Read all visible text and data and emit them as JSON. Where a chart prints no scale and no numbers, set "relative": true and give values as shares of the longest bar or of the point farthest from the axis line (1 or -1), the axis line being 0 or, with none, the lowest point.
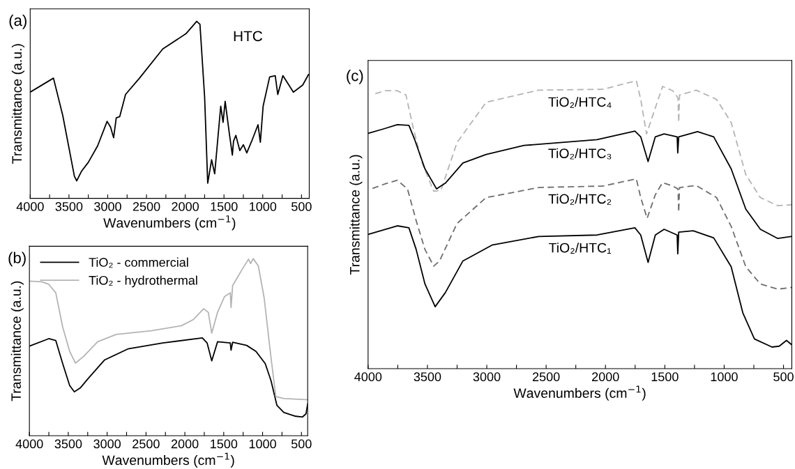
{
  "chart_data": [
    {
      "type": "line",
      "title": "(a)",
      "xlabel": "Wavenumbers (cm$^{−1}$)",
      "ylabel": "Transmittance (a.u.)",
      "relative": true,
      "tick_labels": "x",
      "xlim": [
        4000,
        400
      ],
      "xticks": [
        4000,
        {
          "value": 3750,
          "label": null
        },
        3500,
        {
          "value": 3250,
          "label": null
        },
        3000,
        {
          "value": 2750,
          "label": null
        },
        2500,
        {
          "value": 2250,
          "label": null
        },
        2000,
        {
          "value": 1750,
          "label": null
        },
        1500,
        {
          "value": 1250,
          "label": null
        },
        1000,
        {
          "value": 750,
          "label": null
        },
        500
      ],
      "annotations": [
        "HTC"
      ],
      "series": [
        {
          "color": "#000000",
          "x": [
            4000,
            3700,
            3580,
            3430,
            3400,
            3340,
            3250,
            3130,
            3008,
            2963,
            2924,
            2890,
            2845,
            2770,
            2590,
            2290,
            1990,
            1852,
            1810,
            1750,
            1710,
            1660,
            1620,
            1542,
            1512,
            1485,
            1430,
            1392,
            1377,
            1347,
            1296,
            1250,
            1206,
            1131,
            1061,
            1031,
            995,
            911,
            839,
            806,
            740,
            605,
            484,
            410
          ],
          "values": [
            0.6,
            0.679,
            0.468,
            0.125,
            0.099,
            0.152,
            0.204,
            0.297,
            0.435,
            0.402,
            0.343,
            0.455,
            0.462,
            0.587,
            0.679,
            0.844,
            0.93,
            1.0,
            0.983,
            0.574,
            0.086,
            0.218,
            0.139,
            0.521,
            0.429,
            0.548,
            0.363,
            0.244,
            0.323,
            0.356,
            0.27,
            0.303,
            0.257,
            0.336,
            0.416,
            0.317,
            0.521,
            0.686,
            0.693,
            0.587,
            0.693,
            0.6,
            0.64,
            0.699
          ]
        }
      ]
    },
    {
      "type": "line",
      "title": "(b)",
      "xlabel": "Wavenumbers (cm$^{−1}$)",
      "ylabel": "Transmittance (a.u.)",
      "relative": true,
      "tick_labels": "x",
      "xlim": [
        4000,
        420
      ],
      "legend": "top left",
      "xticks": [
        4000,
        {
          "value": 3750,
          "label": null
        },
        3500,
        {
          "value": 3250,
          "label": null
        },
        3000,
        {
          "value": 2750,
          "label": null
        },
        2500,
        {
          "value": 2250,
          "label": null
        },
        2000,
        {
          "value": 1750,
          "label": null
        },
        1500,
        {
          "value": 1250,
          "label": null
        },
        1000,
        {
          "value": 750,
          "label": null
        },
        500
      ],
      "series": [
        {
          "name": "TiO₂ - commercial",
          "color": "#000000",
          "x": [
            4000,
            3751,
            3661,
            3572,
            3482,
            3422,
            3347,
            3242,
            3032,
            2733,
            2284,
            1775,
            1714,
            1654,
            1579,
            1415,
            1406,
            1385,
            1205,
            1085,
            966,
            891,
            816,
            726,
            576,
            486,
            441,
            420
          ],
          "values": [
            0.506,
            0.548,
            0.538,
            0.407,
            0.283,
            0.248,
            0.269,
            0.324,
            0.428,
            0.49,
            0.524,
            0.552,
            0.524,
            0.423,
            0.531,
            0.524,
            0.483,
            0.528,
            0.51,
            0.476,
            0.407,
            0.31,
            0.172,
            0.131,
            0.11,
            0.106,
            0.124,
            0.179
          ]
        },
        {
          "name": "TiO₂ - hydrothermal",
          "color": "#b4b4b4",
          "x": [
            4000,
            3841,
            3751,
            3661,
            3572,
            3482,
            3407,
            3302,
            3122,
            2883,
            2433,
            2044,
            1894,
            1759,
            1699,
            1654,
            1579,
            1489,
            1415,
            1406,
            1385,
            1265,
            1181,
            1154,
            1121,
            1055,
            980,
            905,
            830,
            726,
            420
          ],
          "values": [
            0.873,
            0.869,
            0.855,
            0.807,
            0.614,
            0.476,
            0.41,
            0.448,
            0.531,
            0.572,
            0.593,
            0.621,
            0.655,
            0.717,
            0.697,
            0.579,
            0.697,
            0.786,
            0.807,
            0.724,
            0.848,
            0.938,
            0.997,
            0.972,
            1.0,
            0.959,
            0.779,
            0.49,
            0.221,
            0.21,
            0.203
          ]
        }
      ]
    },
    {
      "type": "line",
      "title": "(c)",
      "xlabel": "Wavenumbers (cm$^{−1}$)",
      "ylabel": "Transmittance (a.u.)",
      "relative": true,
      "tick_labels": "x",
      "xlim": [
        4000,
        430
      ],
      "xticks": [
        4000,
        {
          "value": 3750,
          "label": null
        },
        3500,
        {
          "value": 3250,
          "label": null
        },
        3000,
        {
          "value": 2750,
          "label": null
        },
        2500,
        {
          "value": 2250,
          "label": null
        },
        2000,
        {
          "value": 1750,
          "label": null
        },
        1500,
        {
          "value": 1250,
          "label": null
        },
        1000,
        {
          "value": 750,
          "label": null
        },
        500
      ],
      "series": [
        {
          "name": "TiO₂/HTC₄",
          "color": "#b4b4b4",
          "line_style": "dashed",
          "x": [
            3939,
            3853,
            3754,
            3681,
            3619,
            3545,
            3447,
            3386,
            3251,
            3005,
            2563,
            2022,
            1740,
            1703,
            1654,
            1605,
            1519,
            1433,
            1389,
            1383,
            1376,
            1236,
            1064,
            941,
            818,
            695,
            548,
            431
          ],
          "values": [
            0.955,
            0.965,
            0.965,
            0.95,
            0.835,
            0.714,
            0.616,
            0.619,
            0.785,
            0.925,
            0.967,
            0.97,
            1.0,
            0.935,
            0.815,
            0.875,
            0.98,
            0.965,
            0.94,
            0.855,
            0.95,
            0.967,
            0.935,
            0.855,
            0.674,
            0.594,
            0.566,
            0.569
          ]
        },
        {
          "name": "TiO₂/HTC₃",
          "color": "#000000",
          "line_style": "solid",
          "x": [
            4000,
            3865,
            3754,
            3656,
            3607,
            3521,
            3423,
            3349,
            3201,
            3005,
            2686,
            2071,
            1752,
            1703,
            1641,
            1580,
            1506,
            1396,
            1391,
            1383,
            1224,
            1088,
            941,
            818,
            695,
            548,
            431
          ],
          "values": [
            0.817,
            0.833,
            0.847,
            0.845,
            0.795,
            0.694,
            0.624,
            0.644,
            0.714,
            0.744,
            0.775,
            0.795,
            0.825,
            0.805,
            0.719,
            0.805,
            0.815,
            0.805,
            0.749,
            0.805,
            0.823,
            0.805,
            0.694,
            0.554,
            0.484,
            0.452,
            0.459
          ]
        },
        {
          "name": "TiO₂/HTC₂",
          "color": "#6e6e6e",
          "line_style": "dashed",
          "x": [
            3963,
            3853,
            3754,
            3668,
            3595,
            3521,
            3447,
            3398,
            3251,
            3005,
            2563,
            2022,
            1740,
            1703,
            1649,
            1580,
            1519,
            1433,
            1389,
            1383,
            1376,
            1236,
            1064,
            941,
            818,
            695,
            548,
            431
          ],
          "values": [
            0.626,
            0.642,
            0.654,
            0.624,
            0.514,
            0.414,
            0.356,
            0.374,
            0.504,
            0.594,
            0.629,
            0.634,
            0.659,
            0.594,
            0.522,
            0.604,
            0.646,
            0.634,
            0.624,
            0.544,
            0.629,
            0.636,
            0.594,
            0.494,
            0.354,
            0.294,
            0.276,
            0.282
          ]
        },
        {
          "name": "TiO₂/HTC₁",
          "color": "#000000",
          "line_style": "solid",
          "x": [
            4000,
            3754,
            3656,
            3595,
            3521,
            3435,
            3349,
            3201,
            2956,
            2563,
            2071,
            1752,
            1703,
            1641,
            1580,
            1506,
            1396,
            1391,
            1383,
            1261,
            1088,
            941,
            843,
            745,
            597,
            536,
            475,
            431
          ],
          "values": [
            0.466,
            0.496,
            0.489,
            0.414,
            0.294,
            0.215,
            0.264,
            0.374,
            0.429,
            0.459,
            0.464,
            0.489,
            0.464,
            0.369,
            0.464,
            0.484,
            0.464,
            0.399,
            0.474,
            0.479,
            0.454,
            0.354,
            0.194,
            0.103,
            0.075,
            0.078,
            0.098,
            0.083
          ]
        }
      ]
    }
  ]
}
